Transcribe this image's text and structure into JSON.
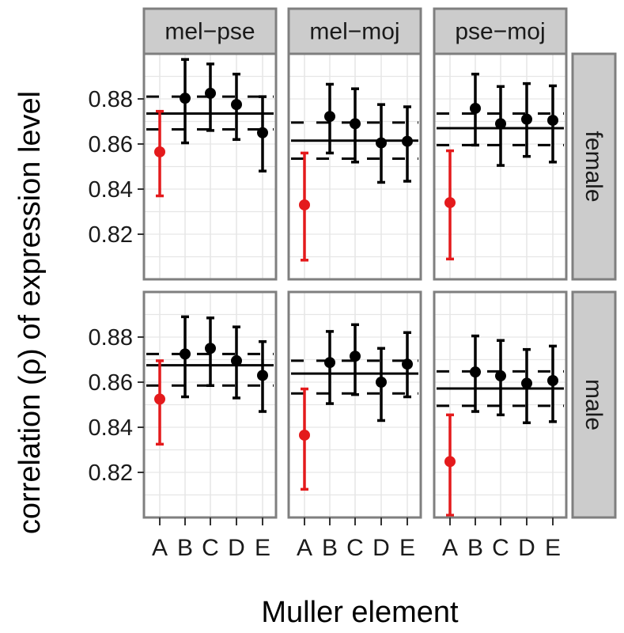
{
  "chart_data": {
    "type": "scatter",
    "xlabel": "Muller element",
    "ylabel": "correlation (ρ) of expression level",
    "categories": [
      "A",
      "B",
      "C",
      "D",
      "E"
    ],
    "ylim": [
      0.8,
      0.9
    ],
    "yticks": [
      0.82,
      0.84,
      0.86,
      0.88
    ],
    "ytick_labels": [
      "0.82",
      "0.84",
      "0.86",
      "0.88"
    ],
    "grid": true,
    "column_facets": [
      "mel−pse",
      "mel−moj",
      "pse−moj"
    ],
    "row_facets": [
      "female",
      "male"
    ],
    "highlight_category": "A",
    "colors": {
      "highlight": "#e41a1c",
      "points": "#000000",
      "panel_background": "#ffffff",
      "panel_border": "#7f7f7f",
      "grid": "#e6e6e6",
      "strip_background": "#cccccc"
    },
    "panels": [
      {
        "column": "mel−pse",
        "row": "female",
        "points": [
          {
            "x": "A",
            "y": 0.8565,
            "lower": 0.837,
            "upper": 0.8745
          },
          {
            "x": "B",
            "y": 0.8803,
            "lower": 0.8605,
            "upper": 0.8975
          },
          {
            "x": "C",
            "y": 0.8825,
            "lower": 0.866,
            "upper": 0.8955
          },
          {
            "x": "D",
            "y": 0.8775,
            "lower": 0.862,
            "upper": 0.891
          },
          {
            "x": "E",
            "y": 0.865,
            "lower": 0.848,
            "upper": 0.881
          }
        ],
        "mean": 0.8735,
        "mean_lower": 0.8665,
        "mean_upper": 0.881
      },
      {
        "column": "mel−moj",
        "row": "female",
        "points": [
          {
            "x": "A",
            "y": 0.833,
            "lower": 0.8085,
            "upper": 0.856
          },
          {
            "x": "B",
            "y": 0.8722,
            "lower": 0.856,
            "upper": 0.8865
          },
          {
            "x": "C",
            "y": 0.869,
            "lower": 0.852,
            "upper": 0.8845
          },
          {
            "x": "D",
            "y": 0.8605,
            "lower": 0.843,
            "upper": 0.8775
          },
          {
            "x": "E",
            "y": 0.8612,
            "lower": 0.8435,
            "upper": 0.8765
          }
        ],
        "mean": 0.8615,
        "mean_lower": 0.8535,
        "mean_upper": 0.8695
      },
      {
        "column": "pse−moj",
        "row": "female",
        "points": [
          {
            "x": "A",
            "y": 0.834,
            "lower": 0.809,
            "upper": 0.857
          },
          {
            "x": "B",
            "y": 0.8758,
            "lower": 0.8595,
            "upper": 0.891
          },
          {
            "x": "C",
            "y": 0.869,
            "lower": 0.8505,
            "upper": 0.8855
          },
          {
            "x": "D",
            "y": 0.871,
            "lower": 0.8545,
            "upper": 0.8868
          },
          {
            "x": "E",
            "y": 0.8705,
            "lower": 0.852,
            "upper": 0.8858
          }
        ],
        "mean": 0.867,
        "mean_lower": 0.8595,
        "mean_upper": 0.8735
      },
      {
        "column": "mel−pse",
        "row": "male",
        "points": [
          {
            "x": "A",
            "y": 0.8525,
            "lower": 0.8325,
            "upper": 0.8695
          },
          {
            "x": "B",
            "y": 0.8725,
            "lower": 0.8535,
            "upper": 0.889
          },
          {
            "x": "C",
            "y": 0.875,
            "lower": 0.8585,
            "upper": 0.8885
          },
          {
            "x": "D",
            "y": 0.8695,
            "lower": 0.853,
            "upper": 0.8845
          },
          {
            "x": "E",
            "y": 0.863,
            "lower": 0.847,
            "upper": 0.878
          }
        ],
        "mean": 0.8675,
        "mean_lower": 0.8585,
        "mean_upper": 0.8725
      },
      {
        "column": "mel−moj",
        "row": "male",
        "points": [
          {
            "x": "A",
            "y": 0.8365,
            "lower": 0.8125,
            "upper": 0.857
          },
          {
            "x": "B",
            "y": 0.8687,
            "lower": 0.8505,
            "upper": 0.8825
          },
          {
            "x": "C",
            "y": 0.8715,
            "lower": 0.8545,
            "upper": 0.8855
          },
          {
            "x": "D",
            "y": 0.86,
            "lower": 0.843,
            "upper": 0.875
          },
          {
            "x": "E",
            "y": 0.868,
            "lower": 0.8535,
            "upper": 0.882
          }
        ],
        "mean": 0.8638,
        "mean_lower": 0.855,
        "mean_upper": 0.8695
      },
      {
        "column": "pse−moj",
        "row": "male",
        "points": [
          {
            "x": "A",
            "y": 0.8248,
            "lower": 0.801,
            "upper": 0.8455
          },
          {
            "x": "B",
            "y": 0.8645,
            "lower": 0.847,
            "upper": 0.8805
          },
          {
            "x": "C",
            "y": 0.8628,
            "lower": 0.8455,
            "upper": 0.8785
          },
          {
            "x": "D",
            "y": 0.8595,
            "lower": 0.842,
            "upper": 0.8745
          },
          {
            "x": "E",
            "y": 0.8607,
            "lower": 0.8425,
            "upper": 0.876
          }
        ],
        "mean": 0.8572,
        "mean_lower": 0.8495,
        "mean_upper": 0.8648
      }
    ]
  }
}
